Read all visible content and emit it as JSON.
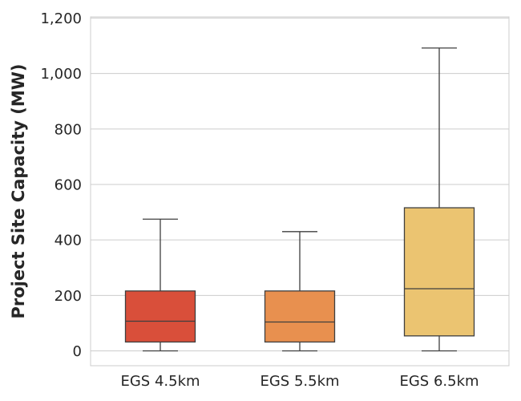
{
  "chart_data": {
    "type": "boxplot",
    "title": "",
    "xlabel": "",
    "ylabel": "Project Site Capacity (MW)",
    "ylim": [
      -55,
      1210
    ],
    "yticks": [
      0,
      200,
      400,
      600,
      800,
      1000,
      1200
    ],
    "ytick_labels": [
      "0",
      "200",
      "400",
      "600",
      "800",
      "1,000",
      "1,200"
    ],
    "grid": true,
    "categories": [
      "EGS 4.5km",
      "EGS 5.5km",
      "EGS 6.5km"
    ],
    "boxes": [
      {
        "label": "EGS 4.5km",
        "whisker_low": 0,
        "q1": 32,
        "median": 107,
        "q3": 216,
        "whisker_high": 475,
        "color": "#d94f3a"
      },
      {
        "label": "EGS 5.5km",
        "whisker_low": 0,
        "q1": 32,
        "median": 104,
        "q3": 216,
        "whisker_high": 430,
        "color": "#e8904f"
      },
      {
        "label": "EGS 6.5km",
        "whisker_low": 0,
        "q1": 54,
        "median": 224,
        "q3": 516,
        "whisker_high": 1092,
        "color": "#ebc471"
      }
    ]
  },
  "colors": {
    "grid": "#cccccc",
    "frame": "#cccccc",
    "line": "#3f3f3f",
    "text": "#262626"
  }
}
